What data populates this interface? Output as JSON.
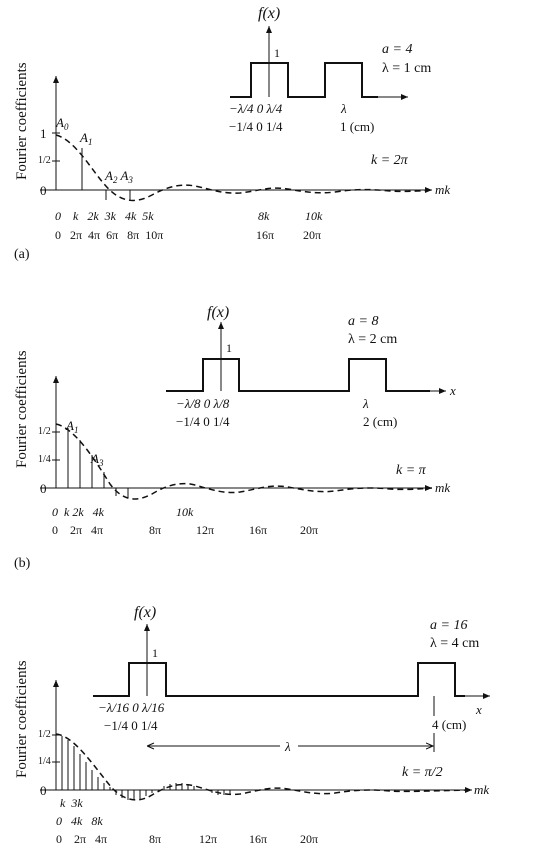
{
  "panel_a": {
    "ylabel": "Fourier coefficients",
    "fx_label": "f(x)",
    "one": "1",
    "a_label": "a = 4",
    "lambda_label": "λ = 1 cm",
    "pulse_tick_lambda": "−λ/4  0  λ/4",
    "pulse_tick_num": "−1/4  0  1/4",
    "lambda_mark": "λ",
    "lambda_cm": "1 (cm)",
    "k_label": "k = 2π",
    "mk_label": "mk",
    "A0": "A0",
    "A1": "A1",
    "A2A3": "A2  A3",
    "ytick_1": "1",
    "ytick_half": "1/2",
    "ytick_0": "0",
    "xticks_k": "0    k   2k  3k   4k  5k",
    "xticks_k2": "8k",
    "xticks_k3": "10k",
    "xticks_pi": "0   2π  4π  6π   8π  10π",
    "xticks_pi2": "16π",
    "xticks_pi3": "20π",
    "caption": "(a)"
  },
  "panel_b": {
    "ylabel": "Fourier coefficients",
    "fx_label": "f(x)",
    "one": "1",
    "a_label": "a = 8",
    "lambda_label": "λ = 2 cm",
    "pulse_tick_lambda": "−λ/8  0  λ/8",
    "pulse_tick_num": "−1/4  0  1/4",
    "lambda_mark": "λ",
    "lambda_cm": "2 (cm)",
    "x_label": "x",
    "k_label": "k = π",
    "mk_label": "mk",
    "A1": "A1",
    "A3": "A3",
    "ytick_half": "1/2",
    "ytick_quarter": "1/4",
    "ytick_0": "0",
    "xticks_k": "0  k 2k   4k",
    "xticks_k2": "10k",
    "xticks_pi": "0    2π   4π",
    "t8": "8π",
    "t12": "12π",
    "t16": "16π",
    "t20": "20π",
    "caption": "(b)"
  },
  "panel_c": {
    "ylabel": "Fourier coefficients",
    "fx_label": "f(x)",
    "one": "1",
    "a_label": "a = 16",
    "lambda_label": "λ = 4 cm",
    "pulse_tick_lambda": "−λ/16  0  λ/16",
    "pulse_tick_num": "−1/4  0  1/4",
    "lambda_mark": "λ",
    "lambda_cm": "4 (cm)",
    "x_label": "x",
    "k_label": "k = π/2",
    "mk_label": "mk",
    "ytick_half": "1/2",
    "ytick_quarter": "1/4",
    "ytick_0": "0",
    "xticks_k": "k  3k",
    "xticks_k2": "0   4k   8k",
    "xticks_pi": "0    2π   4π",
    "t8": "8π",
    "t12": "12π",
    "t16": "16π",
    "t20": "20π"
  }
}
